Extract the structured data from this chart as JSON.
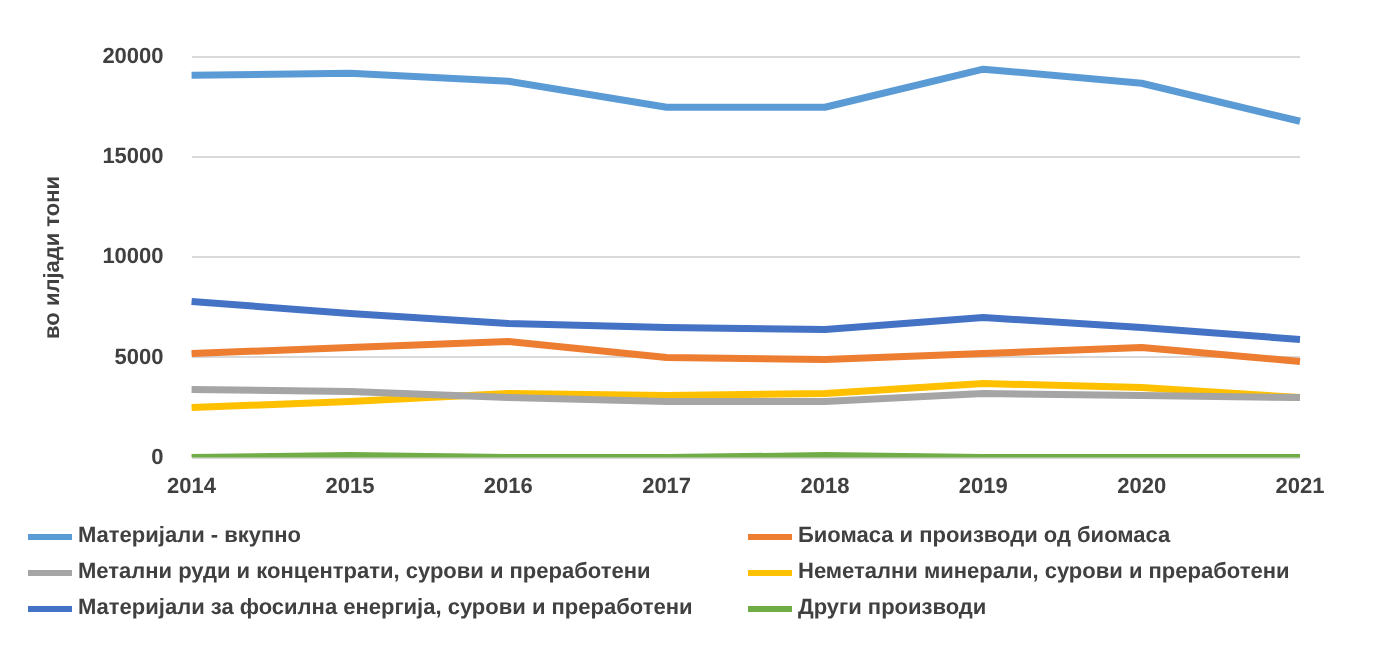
{
  "chart_data": {
    "type": "line",
    "ylabel": "во илјади тони",
    "categories": [
      "2014",
      "2015",
      "2016",
      "2017",
      "2018",
      "2019",
      "2020",
      "2021"
    ],
    "ylim": [
      0,
      20000
    ],
    "yticks": [
      0,
      5000,
      10000,
      15000,
      20000
    ],
    "grid": "y",
    "legend": "bottom",
    "marker": "none",
    "line_style": "solid",
    "series": [
      {
        "name": "Материјали - вкупно",
        "color": "#5b9bd5",
        "values": [
          19100,
          19200,
          18800,
          17500,
          17500,
          19400,
          18700,
          16800
        ]
      },
      {
        "name": "Биомаса и производи од биомаса",
        "color": "#ed7d31",
        "values": [
          5200,
          5500,
          5800,
          5000,
          4900,
          5200,
          5500,
          4800
        ]
      },
      {
        "name": "Метални руди и концентрати, сурови и преработени",
        "color": "#a5a5a5",
        "values": [
          3400,
          3300,
          3000,
          2800,
          2800,
          3200,
          3100,
          3000
        ]
      },
      {
        "name": "Неметални минерали, сурови и преработени",
        "color": "#ffc000",
        "values": [
          2500,
          2800,
          3200,
          3100,
          3200,
          3700,
          3500,
          3000
        ]
      },
      {
        "name": "Материјали за фосилна енергија, сурови и преработени",
        "color": "#4472c4",
        "values": [
          7800,
          7200,
          6700,
          6500,
          6400,
          7000,
          6500,
          5900
        ]
      },
      {
        "name": "Други производи",
        "color": "#70ad47",
        "values": [
          0,
          100,
          0,
          0,
          100,
          0,
          0,
          0
        ]
      }
    ]
  }
}
